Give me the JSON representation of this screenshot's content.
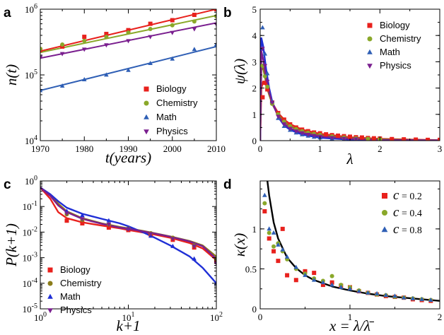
{
  "colors": {
    "biology": "#e8211d",
    "chemistry": "#8aa82a",
    "math": "#2f5fb5",
    "physics": "#7a1f8f",
    "biology_c": "#e8211d",
    "chemistry_c": "#8b7d1a",
    "math_c": "#1f2fd6",
    "physics_c": "#7a1f8f",
    "black": "#000000"
  },
  "chart_data": [
    {
      "panel": "a",
      "type": "scatter",
      "xlabel": "t(years)",
      "ylabel": "n(t)",
      "xscale": "linear",
      "yscale": "log",
      "xlim": [
        1970,
        2010
      ],
      "ylim": [
        10000,
        1000000
      ],
      "xticks": [
        "1970",
        "1980",
        "1990",
        "2000",
        "2010"
      ],
      "yticks": [
        {
          "base": "10",
          "exp": "4"
        },
        {
          "base": "10",
          "exp": "5"
        },
        {
          "base": "10",
          "exp": "6"
        }
      ],
      "legend_position": "bottom-right",
      "series": [
        {
          "name": "Biology",
          "marker": "square",
          "color_key": "biology",
          "x": [
            1970,
            1975,
            1980,
            1985,
            1990,
            1995,
            2000,
            2005,
            2010
          ],
          "y": [
            240000,
            270000,
            380000,
            420000,
            480000,
            600000,
            680000,
            820000,
            1000000
          ],
          "fit": [
            [
              1970,
              230000
            ],
            [
              2010,
              1000000
            ]
          ]
        },
        {
          "name": "Chemistry",
          "marker": "circle",
          "color_key": "chemistry",
          "x": [
            1970,
            1975,
            1980,
            1985,
            1990,
            1995,
            2000,
            2005,
            2010
          ],
          "y": [
            250000,
            290000,
            330000,
            380000,
            440000,
            500000,
            570000,
            650000,
            780000
          ],
          "fit": [
            [
              1970,
              220000
            ],
            [
              2010,
              800000
            ]
          ]
        },
        {
          "name": "Math",
          "marker": "triangle-up",
          "color_key": "math",
          "x": [
            1970,
            1975,
            1980,
            1985,
            1990,
            1995,
            2000,
            2005,
            2010
          ],
          "y": [
            58000,
            68000,
            85000,
            100000,
            118000,
            150000,
            175000,
            245000,
            290000
          ],
          "fit": [
            [
              1970,
              58000
            ],
            [
              2010,
              270000
            ]
          ]
        },
        {
          "name": "Physics",
          "marker": "triangle-down",
          "color_key": "physics",
          "x": [
            1970,
            1975,
            1980,
            1985,
            1990,
            1995,
            2000,
            2005,
            2010
          ],
          "y": [
            185000,
            210000,
            245000,
            285000,
            330000,
            380000,
            440000,
            500000,
            590000
          ],
          "fit": [
            [
              1970,
              180000
            ],
            [
              2010,
              620000
            ]
          ]
        }
      ]
    },
    {
      "panel": "b",
      "type": "scatter",
      "xlabel": "λ",
      "ylabel": "ψ(λ)",
      "xscale": "linear",
      "yscale": "linear",
      "xlim": [
        0,
        3
      ],
      "ylim": [
        0,
        5
      ],
      "xticks": [
        "0",
        "1",
        "2",
        "3"
      ],
      "yticks": [
        "0",
        "1",
        "2",
        "3",
        "4",
        "5"
      ],
      "legend_position": "top-right",
      "series": [
        {
          "name": "Biology",
          "marker": "square",
          "color_key": "biology",
          "x": [
            0.04,
            0.08,
            0.12,
            0.2,
            0.3,
            0.4,
            0.5,
            0.6,
            0.7,
            0.8,
            0.9,
            1.0,
            1.1,
            1.2,
            1.3,
            1.4,
            1.5,
            1.6,
            1.7,
            1.8,
            1.9,
            2.0,
            2.2,
            2.4,
            2.6,
            2.8,
            3.0
          ],
          "y": [
            1.65,
            2.2,
            1.95,
            1.45,
            1.05,
            0.8,
            0.62,
            0.5,
            0.42,
            0.36,
            0.31,
            0.28,
            0.24,
            0.21,
            0.19,
            0.17,
            0.15,
            0.13,
            0.12,
            0.1,
            0.09,
            0.08,
            0.06,
            0.05,
            0.04,
            0.03,
            0.03
          ]
        },
        {
          "name": "Chemistry",
          "marker": "circle",
          "color_key": "chemistry",
          "x": [
            0.04,
            0.08,
            0.12,
            0.2,
            0.3,
            0.4,
            0.5,
            0.6,
            0.7,
            0.8,
            0.9,
            1.0,
            1.2,
            1.4,
            1.6,
            1.8,
            2.0
          ],
          "y": [
            2.85,
            2.45,
            2.05,
            1.4,
            1.0,
            0.72,
            0.55,
            0.44,
            0.36,
            0.3,
            0.26,
            0.22,
            0.16,
            0.12,
            0.09,
            0.07,
            0.05
          ]
        },
        {
          "name": "Math",
          "marker": "triangle-up",
          "color_key": "math",
          "x": [
            0.04,
            0.08,
            0.12,
            0.2,
            0.3,
            0.4,
            0.5,
            0.6,
            0.7,
            0.8,
            0.9,
            1.0,
            1.2,
            1.4,
            1.6
          ],
          "y": [
            4.3,
            3.3,
            2.55,
            1.5,
            0.85,
            0.55,
            0.4,
            0.3,
            0.23,
            0.18,
            0.14,
            0.11,
            0.07,
            0.05,
            0.03
          ]
        },
        {
          "name": "Physics",
          "marker": "triangle-down",
          "color_key": "physics",
          "x": [
            0.04,
            0.08,
            0.12,
            0.2,
            0.3,
            0.4,
            0.5,
            0.6,
            0.7,
            0.8,
            0.9,
            1.0,
            1.2,
            1.4,
            1.6
          ],
          "y": [
            3.5,
            2.85,
            2.25,
            1.45,
            0.92,
            0.63,
            0.46,
            0.36,
            0.29,
            0.23,
            0.19,
            0.16,
            0.11,
            0.08,
            0.06
          ]
        }
      ],
      "fits": [
        {
          "color_key": "biology_c",
          "x": [
            0,
            0.02,
            0.05,
            0.1,
            0.15,
            0.2,
            0.3,
            0.4,
            0.5,
            0.7,
            1.0,
            1.5,
            2.0,
            2.5,
            3.0
          ],
          "y": [
            0,
            2.0,
            2.25,
            2.1,
            1.75,
            1.45,
            1.05,
            0.8,
            0.63,
            0.42,
            0.26,
            0.13,
            0.07,
            0.04,
            0.02
          ]
        },
        {
          "color_key": "chemistry_c",
          "x": [
            0,
            0.02,
            0.05,
            0.1,
            0.15,
            0.2,
            0.3,
            0.4,
            0.5,
            0.7,
            1.0,
            1.5,
            2.0,
            2.5,
            3.0
          ],
          "y": [
            0,
            2.7,
            2.75,
            2.2,
            1.75,
            1.4,
            0.98,
            0.72,
            0.55,
            0.36,
            0.21,
            0.1,
            0.05,
            0.03,
            0.01
          ]
        },
        {
          "color_key": "math_c",
          "x": [
            0,
            0.02,
            0.05,
            0.1,
            0.15,
            0.2,
            0.3,
            0.4,
            0.5,
            0.7,
            1.0,
            1.5,
            2.0,
            2.5,
            3.0
          ],
          "y": [
            0,
            3.9,
            3.6,
            2.7,
            2.0,
            1.5,
            0.9,
            0.58,
            0.41,
            0.23,
            0.11,
            0.04,
            0.02,
            0.01,
            0.0
          ]
        },
        {
          "color_key": "physics_c",
          "x": [
            0,
            0.02,
            0.05,
            0.1,
            0.15,
            0.2,
            0.3,
            0.4,
            0.5,
            0.7,
            1.0,
            1.5,
            2.0,
            2.5,
            3.0
          ],
          "y": [
            0,
            3.4,
            3.1,
            2.4,
            1.85,
            1.45,
            0.93,
            0.64,
            0.47,
            0.29,
            0.16,
            0.07,
            0.03,
            0.02,
            0.01
          ]
        }
      ]
    },
    {
      "panel": "c",
      "type": "scatter",
      "xlabel": "k+1",
      "ylabel": "P(k+1)",
      "xscale": "log",
      "yscale": "log",
      "xlim": [
        1,
        100
      ],
      "ylim": [
        1e-05,
        1
      ],
      "xticks": [
        {
          "base": "10",
          "exp": "0"
        },
        {
          "base": "10",
          "exp": "1"
        },
        {
          "base": "10",
          "exp": "2"
        }
      ],
      "yticks": [
        {
          "base": "10",
          "exp": "-5"
        },
        {
          "base": "10",
          "exp": "-4"
        },
        {
          "base": "10",
          "exp": "-3"
        },
        {
          "base": "10",
          "exp": "-2"
        },
        {
          "base": "10",
          "exp": "-1"
        },
        {
          "base": "10",
          "exp": "0"
        }
      ],
      "legend_position": "bottom-left",
      "series": [
        {
          "name": "Biology",
          "marker": "square",
          "color_key": "biology",
          "x": [
            2,
            3,
            6,
            10,
            18,
            32,
            56,
            100
          ],
          "y": [
            0.028,
            0.022,
            0.015,
            0.012,
            0.008,
            0.005,
            0.0025,
            0.0007
          ]
        },
        {
          "name": "Chemistry",
          "marker": "circle",
          "color_key": "chemistry_c",
          "x": [
            2,
            3,
            6,
            10,
            18,
            32,
            56,
            100
          ],
          "y": [
            0.05,
            0.03,
            0.02,
            0.014,
            0.009,
            0.006,
            0.003,
            0.0009
          ]
        },
        {
          "name": "Math",
          "marker": "triangle-up",
          "color_key": "math_c",
          "x": [
            2,
            3,
            6,
            10,
            18,
            32,
            56,
            100
          ],
          "y": [
            0.065,
            0.045,
            0.028,
            0.014,
            0.007,
            0.0028,
            0.0009,
            0.0001
          ]
        },
        {
          "name": "Physics",
          "marker": "triangle-down",
          "color_key": "physics_c",
          "x": [
            2,
            3,
            6,
            10,
            18,
            32,
            56,
            100
          ],
          "y": [
            0.055,
            0.033,
            0.02,
            0.013,
            0.0085,
            0.0055,
            0.0028,
            0.0006
          ]
        }
      ],
      "fits": [
        {
          "color_key": "biology_c",
          "x": [
            1,
            1.3,
            1.6,
            2,
            3,
            5,
            8,
            10,
            15,
            20,
            30,
            50,
            70,
            100
          ],
          "y": [
            0.55,
            0.2,
            0.06,
            0.035,
            0.024,
            0.018,
            0.014,
            0.012,
            0.0095,
            0.008,
            0.006,
            0.0037,
            0.0023,
            0.0008
          ]
        },
        {
          "color_key": "chemistry_c",
          "x": [
            1,
            1.3,
            1.6,
            2,
            3,
            5,
            8,
            10,
            15,
            20,
            30,
            50,
            70,
            100
          ],
          "y": [
            0.55,
            0.28,
            0.13,
            0.065,
            0.035,
            0.022,
            0.016,
            0.014,
            0.011,
            0.009,
            0.0068,
            0.0045,
            0.003,
            0.0011
          ]
        },
        {
          "color_key": "math_c",
          "x": [
            1,
            1.3,
            1.6,
            2,
            3,
            5,
            8,
            10,
            15,
            20,
            30,
            50,
            70,
            100
          ],
          "y": [
            0.55,
            0.3,
            0.16,
            0.09,
            0.052,
            0.033,
            0.022,
            0.017,
            0.0095,
            0.006,
            0.003,
            0.0011,
            0.0004,
            0.0001
          ]
        },
        {
          "color_key": "physics_c",
          "x": [
            1,
            1.3,
            1.6,
            2,
            3,
            5,
            8,
            10,
            15,
            20,
            30,
            50,
            70,
            100
          ],
          "y": [
            0.55,
            0.26,
            0.11,
            0.06,
            0.033,
            0.021,
            0.015,
            0.0135,
            0.0105,
            0.0088,
            0.0066,
            0.0043,
            0.0028,
            0.0009
          ]
        }
      ]
    },
    {
      "panel": "d",
      "type": "scatter",
      "xlabel": "x = λ/λ̄",
      "ylabel": "κ(x)",
      "xscale": "linear",
      "yscale": "linear",
      "xlim": [
        0,
        2
      ],
      "ylim": [
        0,
        1.6
      ],
      "xticks": [
        "0",
        "1",
        "2"
      ],
      "yticks": [
        "0",
        "0.5",
        "1"
      ],
      "legend_position": "top-right",
      "series": [
        {
          "name": "c = 0.2",
          "legend_var": "c",
          "legend_val": "= 0.2",
          "marker": "square",
          "color_key": "biology",
          "x": [
            0.05,
            0.1,
            0.15,
            0.2,
            0.25,
            0.3,
            0.4,
            0.5,
            0.6,
            0.7,
            0.8,
            0.9,
            1.0,
            1.1,
            1.2,
            1.3,
            1.4,
            1.5,
            1.6,
            1.7,
            1.8,
            1.9
          ],
          "y": [
            1.22,
            0.88,
            0.72,
            0.6,
            1.0,
            0.42,
            0.36,
            0.47,
            0.45,
            0.3,
            0.33,
            0.29,
            0.27,
            0.22,
            0.2,
            0.18,
            0.16,
            0.15,
            0.14,
            0.12,
            0.11,
            0.1
          ]
        },
        {
          "name": "c = 0.4",
          "legend_var": "c",
          "legend_val": "= 0.4",
          "marker": "circle",
          "color_key": "chemistry",
          "x": [
            0.05,
            0.1,
            0.15,
            0.2,
            0.25,
            0.3,
            0.4,
            0.5,
            0.6,
            0.7,
            0.8,
            0.9,
            1.0,
            1.1,
            1.2,
            1.3,
            1.4,
            1.5,
            1.6,
            1.7,
            1.8,
            1.9
          ],
          "y": [
            1.32,
            0.95,
            0.78,
            0.82,
            0.72,
            0.62,
            0.5,
            0.44,
            0.38,
            0.35,
            0.41,
            0.3,
            0.27,
            0.23,
            0.2,
            0.18,
            0.17,
            0.15,
            0.14,
            0.13,
            0.12,
            0.11
          ]
        },
        {
          "name": "c = 0.8",
          "legend_var": "c",
          "legend_val": "= 0.8",
          "marker": "triangle-up",
          "color_key": "math",
          "x": [
            0.05,
            0.1,
            0.15,
            0.2,
            0.25,
            0.3,
            0.4,
            0.5,
            0.6,
            0.7,
            0.8,
            0.9,
            1.0,
            1.1,
            1.2,
            1.3,
            1.4,
            1.5,
            1.6,
            1.7,
            1.8,
            1.9
          ],
          "y": [
            1.42,
            1.0,
            0.95,
            0.8,
            0.74,
            0.65,
            0.52,
            0.42,
            0.36,
            0.33,
            0.3,
            0.27,
            0.25,
            0.22,
            0.2,
            0.19,
            0.17,
            0.16,
            0.14,
            0.13,
            0.12,
            0.11
          ]
        }
      ],
      "fits": [
        {
          "color_key": "black",
          "x": [
            0.08,
            0.1,
            0.15,
            0.2,
            0.3,
            0.4,
            0.5,
            0.6,
            0.8,
            1.0,
            1.2,
            1.4,
            1.6,
            1.8,
            2.0
          ],
          "y": [
            1.6,
            1.42,
            1.08,
            0.88,
            0.64,
            0.51,
            0.42,
            0.36,
            0.28,
            0.23,
            0.19,
            0.16,
            0.14,
            0.12,
            0.1
          ]
        }
      ]
    }
  ]
}
